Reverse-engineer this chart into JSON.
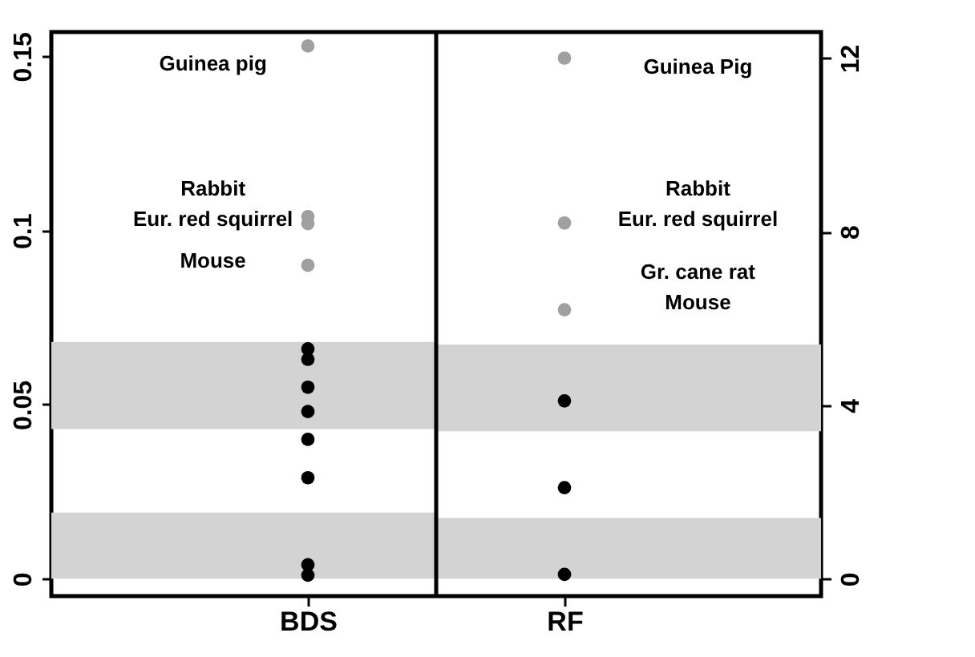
{
  "chart_data": {
    "type": "scatter",
    "categories": [
      "BDS",
      "RF"
    ],
    "ylim": [
      -0.005,
      0.157
    ],
    "yticks": [
      0,
      {
        "value": 0.05,
        "label": "0.05"
      },
      {
        "value": 0.1,
        "label": "0.1"
      },
      {
        "value": 0.15,
        "label": "0.15"
      }
    ],
    "y2lim": [
      -0.4,
      12.6
    ],
    "y2ticks": [
      0,
      4,
      8,
      12
    ],
    "marker": "circle",
    "series": [
      {
        "color": "#a0a0a0",
        "x": [
          "BDS",
          "BDS",
          "BDS",
          "BDS"
        ],
        "values": [
          0.153,
          0.104,
          0.102,
          0.09
        ]
      },
      {
        "color": "#000000",
        "x": [
          "BDS",
          "BDS",
          "BDS",
          "BDS",
          "BDS",
          "BDS"
        ],
        "values": [
          0.066,
          0.063,
          0.048,
          0.029,
          0.004,
          0.001
        ]
      },
      {
        "color": "#000000",
        "x": [
          "BDS",
          "BDS"
        ],
        "values": [
          0.055,
          0.04
        ]
      },
      {
        "color": "#a0a0a0",
        "axis": "y2",
        "x": [
          "RF",
          "RF",
          "RF"
        ],
        "values": [
          12.0,
          8.2,
          6.2
        ]
      },
      {
        "color": "#000000",
        "axis": "y2",
        "x": [
          "RF",
          "RF",
          "RF"
        ],
        "values": [
          4.1,
          2.1,
          0.1
        ]
      }
    ],
    "bands": [
      {
        "axis": "y",
        "from": 0,
        "to": 0.019,
        "color": "#d3d3d3"
      },
      {
        "axis": "y",
        "from": 0.043,
        "to": 0.068,
        "color": "#d3d3d3"
      },
      {
        "axis": "y2",
        "from": 0,
        "to": 1.4,
        "color": "#d3d3d3"
      },
      {
        "axis": "y2",
        "from": 3.4,
        "to": 5.4,
        "color": "#d3d3d3"
      }
    ],
    "annotations": [
      "Guinea pig",
      "Rabbit",
      "Eur. red squirrel",
      "Mouse",
      "Guinea Pig",
      "Rabbit",
      "Eur. red squirrel",
      "Gr. cane rat",
      "Mouse"
    ]
  }
}
